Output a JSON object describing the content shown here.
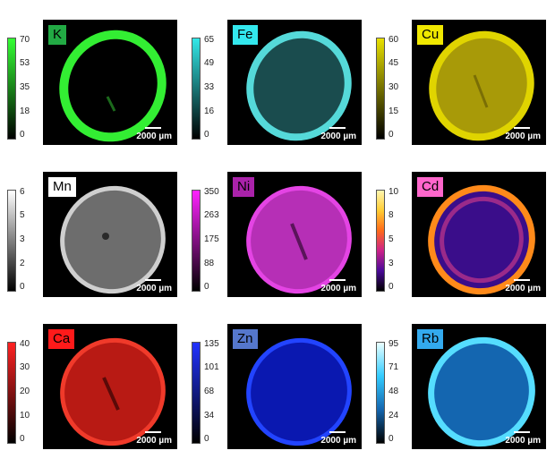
{
  "scale_text": "2000 µm",
  "panels": [
    {
      "element": "K",
      "ticks": [
        "70",
        "53",
        "35",
        "18",
        "0"
      ],
      "bar_top": "#33ff33",
      "bar_bottom": "#000000",
      "label_bg": "#22aa44",
      "ring": "#33ee33",
      "fill": "#000000",
      "label_color": "#000000"
    },
    {
      "element": "Fe",
      "ticks": [
        "65",
        "49",
        "33",
        "16",
        "0"
      ],
      "bar_top": "#33e8e8",
      "bar_bottom": "#000000",
      "label_bg": "#33e8ee",
      "ring": "#55d9d9",
      "fill": "#1a4c4e",
      "label_color": "#000000"
    },
    {
      "element": "Cu",
      "ticks": [
        "60",
        "45",
        "30",
        "15",
        "0"
      ],
      "bar_top": "#e8e000",
      "bar_bottom": "#000000",
      "label_bg": "#f0e800",
      "ring": "#e0d400",
      "fill": "#a89a08",
      "label_color": "#000000"
    },
    {
      "element": "Mn",
      "ticks": [
        "6",
        "5",
        "3",
        "2",
        "0"
      ],
      "bar_top": "#ffffff",
      "bar_bottom": "#000000",
      "label_bg": "#ffffff",
      "ring": "#cfcfcf",
      "fill": "#6d6d6d",
      "label_color": "#000000"
    },
    {
      "element": "Ni",
      "ticks": [
        "350",
        "263",
        "175",
        "88",
        "0"
      ],
      "bar_top": "#ff22ff",
      "bar_bottom": "#000000",
      "label_bg": "#aa22aa",
      "ring": "#e444e4",
      "fill": "#b62fb6",
      "label_color": "#000000"
    },
    {
      "element": "Cd",
      "ticks": [
        "10",
        "8",
        "5",
        "3",
        "0"
      ],
      "bar_top": "#fff7b0",
      "bar_bottom": "#000000",
      "label_bg": "#ff66cc",
      "ring": "#ff8a1a",
      "fill": "#3a0d8a",
      "label_color": "#000000"
    },
    {
      "element": "Ca",
      "ticks": [
        "40",
        "30",
        "20",
        "10",
        "0"
      ],
      "bar_top": "#ff2222",
      "bar_bottom": "#000000",
      "label_bg": "#ff1a1a",
      "ring": "#f03a2a",
      "fill": "#b81a14",
      "label_color": "#000000"
    },
    {
      "element": "Zn",
      "ticks": [
        "135",
        "101",
        "68",
        "34",
        "0"
      ],
      "bar_top": "#2233ff",
      "bar_bottom": "#000000",
      "label_bg": "#5577cc",
      "ring": "#2244ff",
      "fill": "#0a18b0",
      "label_color": "#000000"
    },
    {
      "element": "Rb",
      "ticks": [
        "95",
        "71",
        "48",
        "24",
        "0"
      ],
      "bar_top": "#eaffff",
      "bar_bottom": "#000000",
      "label_bg": "#33aaee",
      "ring": "#55ddff",
      "fill": "#1466b0",
      "label_color": "#000000"
    }
  ]
}
